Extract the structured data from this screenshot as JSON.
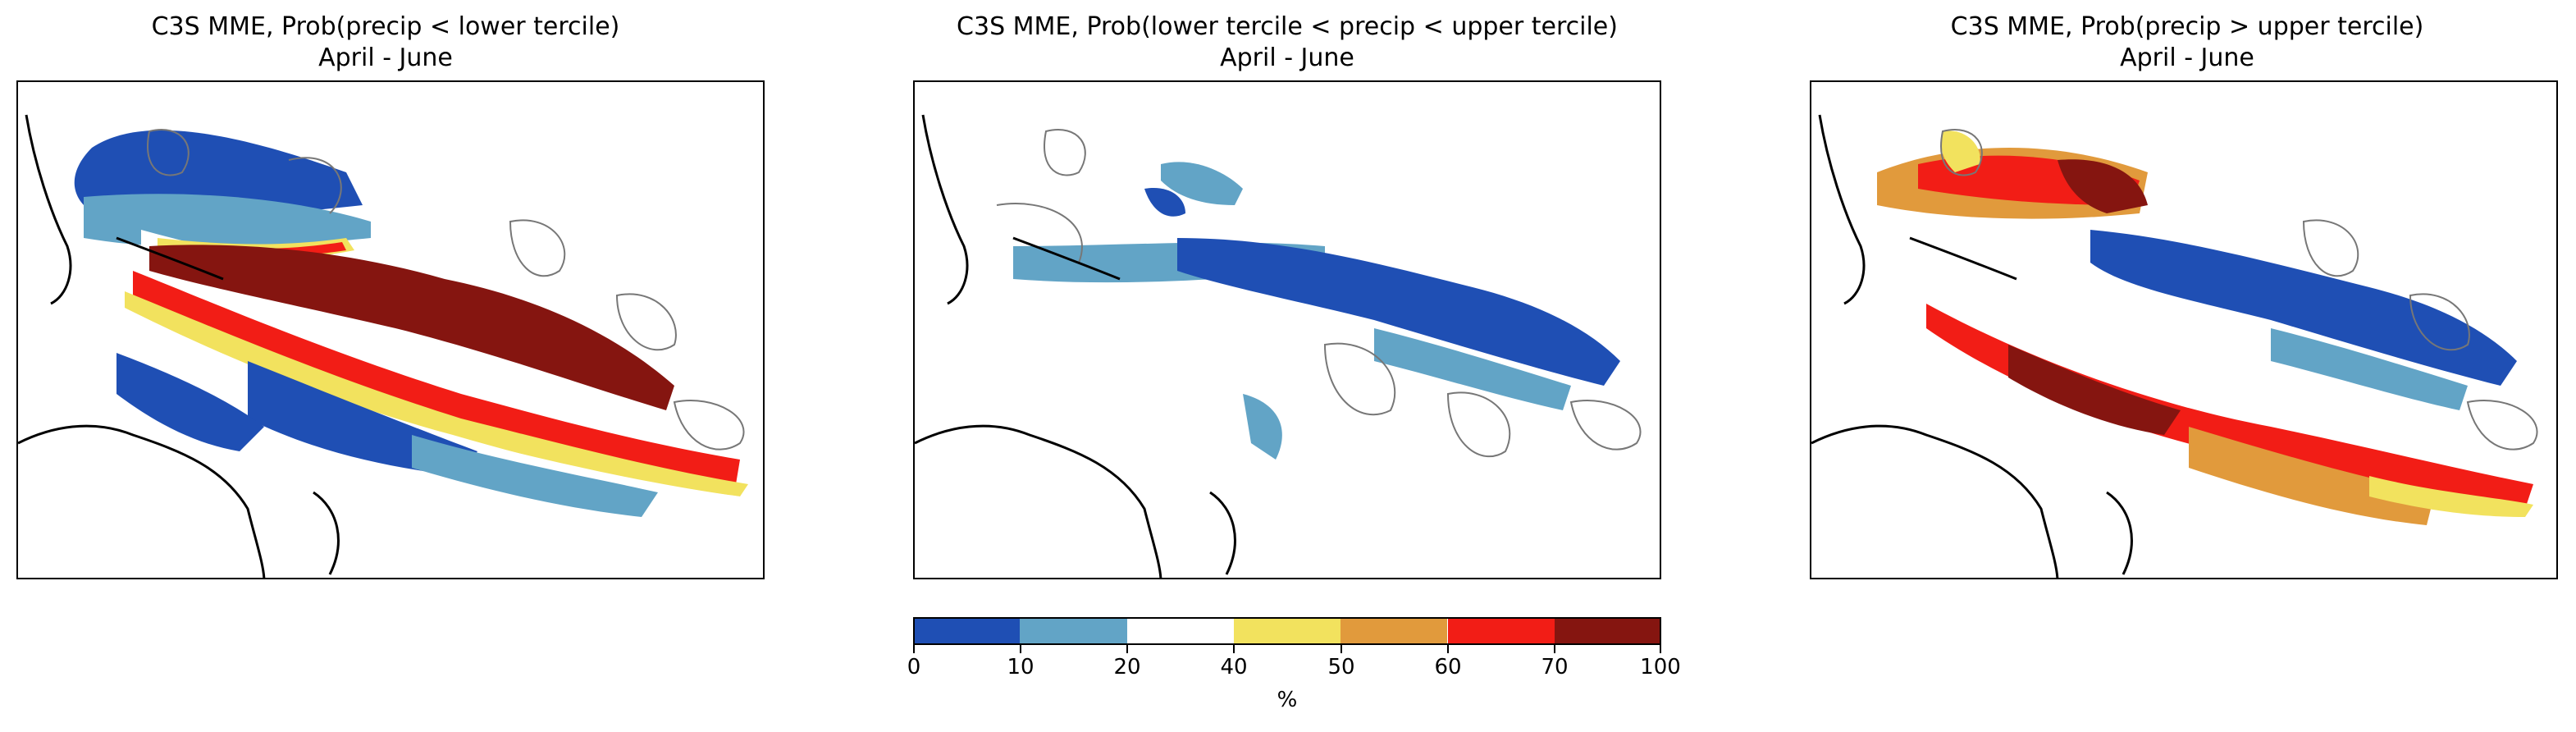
{
  "panels": [
    {
      "title_line1": "C3S MME, Prob(precip < lower tercile)",
      "title_line2": "April - June"
    },
    {
      "title_line1": "C3S MME, Prob(lower tercile < precip < upper tercile)",
      "title_line2": "April - June"
    },
    {
      "title_line1": "C3S MME, Prob(precip > upper tercile)",
      "title_line2": "April - June"
    }
  ],
  "colorbar": {
    "unit": "%",
    "ticks": [
      "0",
      "10",
      "20",
      "40",
      "50",
      "60",
      "70",
      "100"
    ],
    "colors": [
      "#1f4fb4",
      "#62a4c6",
      "#ffffff",
      "#f2e25e",
      "#e19a3c",
      "#f21d16",
      "#851510"
    ]
  }
}
